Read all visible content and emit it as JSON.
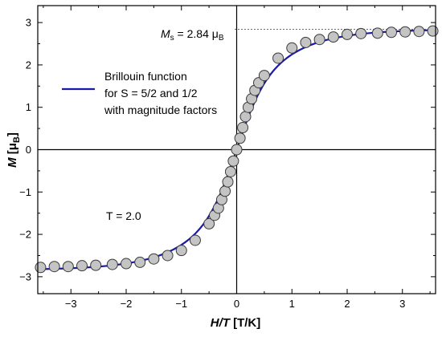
{
  "chart_data": {
    "type": "scatter",
    "xlabel": "H/T [T/K]",
    "xlabel_parts": {
      "italic": "H/T",
      "rest": " [T/K]"
    },
    "ylabel_parts": {
      "italic": "M",
      "rest_open": " [μ",
      "sub": "B",
      "rest_close": "]"
    },
    "xlim": [
      -3.6,
      3.6
    ],
    "ylim": [
      -3.4,
      3.4
    ],
    "xticks": [
      -3,
      -2,
      -1,
      0,
      1,
      2,
      3
    ],
    "yticks": [
      -3,
      -2,
      -1,
      0,
      1,
      2,
      3
    ],
    "grid": false,
    "zero_lines": true,
    "legend": {
      "position": "upper-left",
      "lines": [
        "Brillouin function",
        "for S = 5/2 and 1/2",
        "with magnitude factors"
      ]
    },
    "annotations": {
      "saturation": {
        "symbol": "M",
        "sub": "s",
        "text": " = 2.84 μ",
        "unit_sub": "B",
        "value": 2.84
      },
      "temperature": {
        "text": "T = 2.0"
      }
    },
    "series": [
      {
        "name": "Brillouin function for S = 5/2 and 1/2 with magnitude factors",
        "kind": "line",
        "color": "#1a1aa8",
        "saturation": 2.84
      },
      {
        "kind": "scatter",
        "marker_fill": "#c4c4c4",
        "marker_edge": "#3a3a3a",
        "x": [
          -3.55,
          -3.3,
          -3.05,
          -2.8,
          -2.55,
          -2.25,
          -2.0,
          -1.75,
          -1.5,
          -1.25,
          -1.0,
          -0.75,
          -0.5,
          -0.4,
          -0.33,
          -0.27,
          -0.21,
          -0.16,
          -0.11,
          -0.06,
          0.0,
          0.06,
          0.11,
          0.16,
          0.21,
          0.27,
          0.33,
          0.4,
          0.5,
          0.75,
          1.0,
          1.25,
          1.5,
          1.75,
          2.0,
          2.25,
          2.55,
          2.8,
          3.05,
          3.3,
          3.55
        ],
        "y": [
          -2.78,
          -2.76,
          -2.76,
          -2.74,
          -2.73,
          -2.71,
          -2.69,
          -2.66,
          -2.58,
          -2.5,
          -2.38,
          -2.14,
          -1.75,
          -1.55,
          -1.38,
          -1.18,
          -0.98,
          -0.76,
          -0.52,
          -0.27,
          0.0,
          0.27,
          0.52,
          0.78,
          1.0,
          1.2,
          1.4,
          1.58,
          1.75,
          2.16,
          2.4,
          2.53,
          2.6,
          2.66,
          2.72,
          2.74,
          2.75,
          2.77,
          2.78,
          2.79,
          2.8
        ]
      }
    ]
  }
}
